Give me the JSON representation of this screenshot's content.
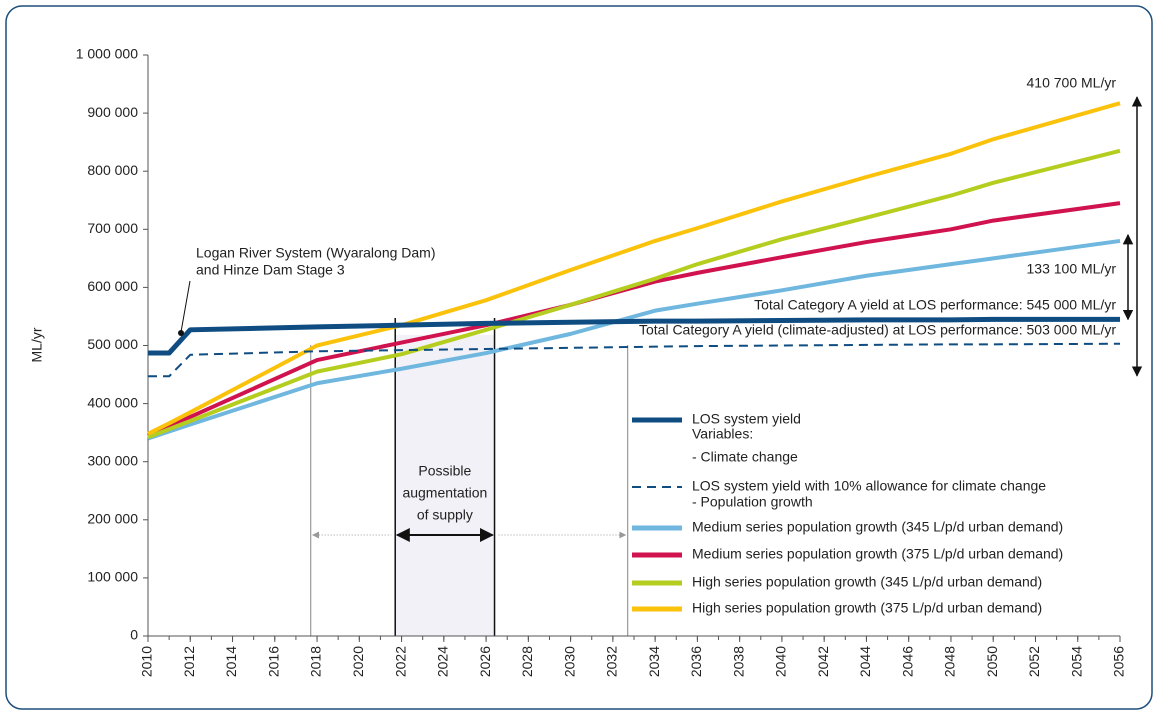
{
  "chart_data": {
    "type": "line",
    "y_label": "ML/yr",
    "x": [
      2010,
      2011,
      2012,
      2018,
      2022,
      2026,
      2030,
      2034,
      2036,
      2040,
      2044,
      2048,
      2050,
      2056
    ],
    "series": [
      {
        "name": "LOS system yield",
        "color": "#0f4c81",
        "width": 5,
        "dash": false,
        "values": [
          487000,
          487000,
          527000,
          532000,
          535000,
          538000,
          540000,
          542000,
          542000,
          543000,
          544000,
          544000,
          545000,
          545000
        ]
      },
      {
        "name": "LOS system yield with 10% allowance for climate change",
        "color": "#0f4c81",
        "width": 2,
        "dash": true,
        "values": [
          447000,
          447000,
          484000,
          490000,
          492000,
          494000,
          496000,
          498000,
          499000,
          500000,
          501000,
          502000,
          502000,
          503000
        ]
      },
      {
        "name": "Medium series population growth (345 L/p/d urban demand)",
        "color": "#6fb7de",
        "width": 4,
        "dash": false,
        "values": [
          340000,
          352000,
          364000,
          435000,
          460000,
          487000,
          520000,
          560000,
          572000,
          595000,
          620000,
          640000,
          650000,
          680000
        ]
      },
      {
        "name": "Medium series population growth (375 L/p/d urban demand)",
        "color": "#d0124f",
        "width": 4,
        "dash": false,
        "values": [
          345000,
          361000,
          377000,
          475000,
          505000,
          535000,
          570000,
          610000,
          625000,
          652000,
          678000,
          700000,
          715000,
          745000
        ]
      },
      {
        "name": "High series population growth (345 L/p/d urban demand)",
        "color": "#b5cd1e",
        "width": 4,
        "dash": false,
        "values": [
          342000,
          356000,
          370000,
          455000,
          485000,
          527000,
          570000,
          615000,
          640000,
          683000,
          720000,
          758000,
          780000,
          835000
        ]
      },
      {
        "name": "High series population growth (375 L/p/d urban demand)",
        "color": "#fbc20c",
        "width": 4,
        "dash": false,
        "values": [
          348000,
          366000,
          385000,
          500000,
          535000,
          578000,
          630000,
          680000,
          702000,
          748000,
          790000,
          830000,
          855000,
          917000
        ]
      }
    ],
    "legend_notes": [
      "Variables:",
      "- Climate change",
      "- Population growth"
    ],
    "xlim": [
      2010,
      2056
    ],
    "xticks": [
      2010,
      2012,
      2014,
      2016,
      2018,
      2020,
      2022,
      2024,
      2026,
      2028,
      2030,
      2032,
      2034,
      2036,
      2038,
      2040,
      2042,
      2044,
      2046,
      2048,
      2050,
      2052,
      2054,
      2056
    ],
    "ylim": [
      0,
      1000000
    ],
    "yticks": [
      0,
      {
        "value": 100000,
        "label": "100 000"
      },
      {
        "value": 200000,
        "label": "200 000"
      },
      {
        "value": 300000,
        "label": "300 000"
      },
      {
        "value": 400000,
        "label": "400 000"
      },
      {
        "value": 500000,
        "label": "500 000"
      },
      {
        "value": 600000,
        "label": "600 000"
      },
      {
        "value": 700000,
        "label": "700 000"
      },
      {
        "value": 800000,
        "label": "800 000"
      },
      {
        "value": 900000,
        "label": "900 000"
      },
      {
        "value": 1000000,
        "label": "1 000 000"
      }
    ],
    "markers": [
      2017.7,
      2021.7,
      2026.4,
      2032.7
    ],
    "annotations": {
      "stage3": [
        "Logan River System (Wyaralong Dam)",
        "and Hinze Dam Stage 3"
      ],
      "los_total": "Total Category A yield at LOS performance: 545 000 ML/yr",
      "climate_total": "Total Category A yield (climate-adjusted) at LOS performance: 503 000 ML/yr",
      "gap_high": "410 700 ML/yr",
      "gap_medium": "133 100 ML/yr",
      "augmentation": [
        "Possible",
        "augmentation",
        "of supply"
      ]
    }
  }
}
